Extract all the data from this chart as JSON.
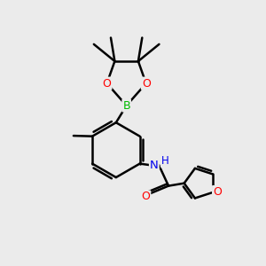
{
  "bg_color": "#ebebeb",
  "bond_color": "#000000",
  "bond_width": 1.8,
  "atom_colors": {
    "B": "#00bb00",
    "O": "#ff0000",
    "N": "#0000ee",
    "C": "#000000"
  },
  "font_size": 8.5,
  "fig_size": [
    3.0,
    3.0
  ],
  "dpi": 100
}
